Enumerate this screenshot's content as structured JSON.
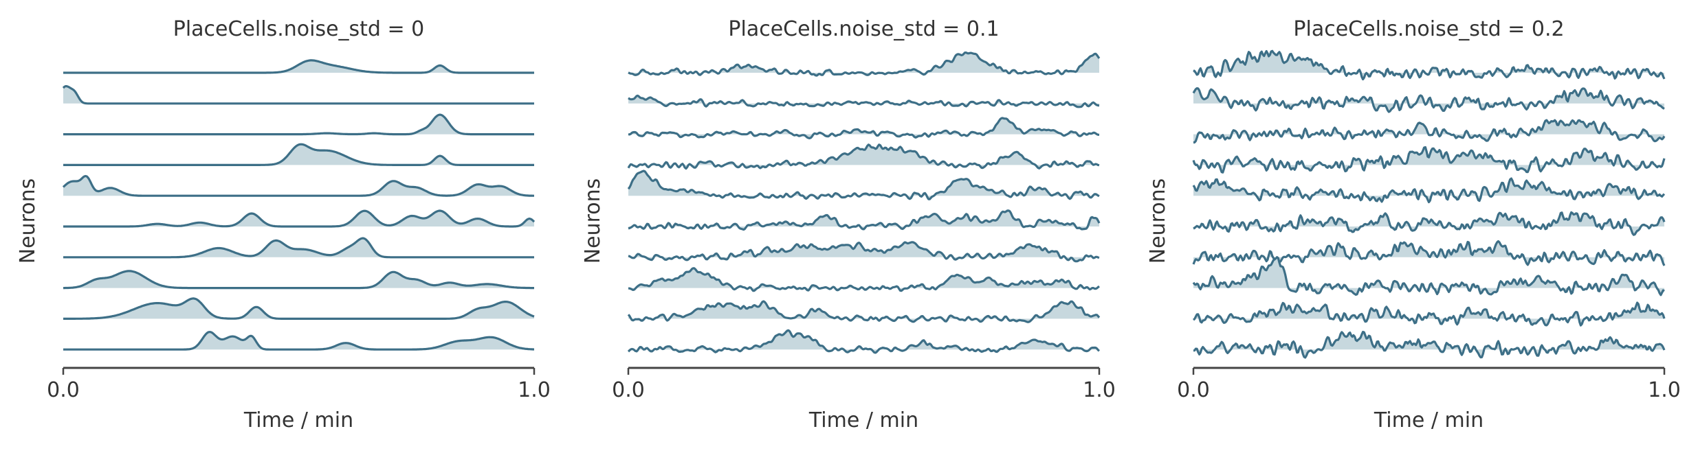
{
  "chart_data": [
    {
      "type": "line",
      "title": "PlaceCells.noise_std = 0",
      "xlabel": "Time / min",
      "ylabel": "Neurons",
      "xlim": [
        0,
        1
      ],
      "x_ticks": [
        "0.0",
        "1.0"
      ],
      "noise_std": 0,
      "n_neurons": 10,
      "line_color": "#3d6f87",
      "fill_color": "#c7d8de",
      "bumps": [
        [
          [
            0.52,
            0.025,
            0.35
          ],
          [
            0.57,
            0.04,
            0.25
          ],
          [
            0.8,
            0.012,
            0.28
          ]
        ],
        [
          [
            0.005,
            0.012,
            0.65
          ],
          [
            0.025,
            0.008,
            0.3
          ]
        ],
        [
          [
            0.8,
            0.018,
            0.75
          ],
          [
            0.76,
            0.01,
            0.1
          ],
          [
            0.56,
            0.02,
            0.04
          ],
          [
            0.66,
            0.015,
            0.04
          ]
        ],
        [
          [
            0.5,
            0.02,
            0.6
          ],
          [
            0.56,
            0.04,
            0.55
          ],
          [
            0.8,
            0.012,
            0.35
          ]
        ],
        [
          [
            0.02,
            0.02,
            0.55
          ],
          [
            0.05,
            0.01,
            0.55
          ],
          [
            0.1,
            0.02,
            0.3
          ],
          [
            0.7,
            0.02,
            0.55
          ],
          [
            0.75,
            0.02,
            0.3
          ],
          [
            0.88,
            0.02,
            0.42
          ],
          [
            0.93,
            0.02,
            0.35
          ]
        ],
        [
          [
            0.2,
            0.02,
            0.1
          ],
          [
            0.29,
            0.02,
            0.15
          ],
          [
            0.4,
            0.018,
            0.5
          ],
          [
            0.64,
            0.02,
            0.6
          ],
          [
            0.74,
            0.02,
            0.4
          ],
          [
            0.8,
            0.02,
            0.6
          ],
          [
            0.88,
            0.02,
            0.3
          ],
          [
            0.99,
            0.01,
            0.3
          ]
        ],
        [
          [
            0.33,
            0.03,
            0.35
          ],
          [
            0.45,
            0.02,
            0.6
          ],
          [
            0.51,
            0.03,
            0.3
          ],
          [
            0.61,
            0.02,
            0.35
          ],
          [
            0.64,
            0.015,
            0.6
          ]
        ],
        [
          [
            0.14,
            0.035,
            0.65
          ],
          [
            0.07,
            0.02,
            0.25
          ],
          [
            0.7,
            0.02,
            0.6
          ],
          [
            0.75,
            0.02,
            0.3
          ],
          [
            0.82,
            0.02,
            0.2
          ],
          [
            0.9,
            0.03,
            0.15
          ]
        ],
        [
          [
            0.2,
            0.05,
            0.6
          ],
          [
            0.28,
            0.02,
            0.6
          ],
          [
            0.41,
            0.015,
            0.45
          ],
          [
            0.94,
            0.03,
            0.65
          ],
          [
            0.88,
            0.02,
            0.3
          ]
        ],
        [
          [
            0.31,
            0.015,
            0.65
          ],
          [
            0.36,
            0.02,
            0.5
          ],
          [
            0.4,
            0.01,
            0.45
          ],
          [
            0.6,
            0.02,
            0.25
          ],
          [
            0.84,
            0.03,
            0.3
          ],
          [
            0.91,
            0.03,
            0.45
          ]
        ]
      ]
    },
    {
      "type": "line",
      "title": "PlaceCells.noise_std = 0.1",
      "xlabel": "Time / min",
      "ylabel": "Neurons",
      "xlim": [
        0,
        1
      ],
      "x_ticks": [
        "0.0",
        "1.0"
      ],
      "noise_std": 0.1,
      "n_neurons": 10,
      "line_color": "#3d6f87",
      "fill_color": "#c7d8de",
      "bumps": [
        [
          [
            0.25,
            0.04,
            0.2
          ],
          [
            0.72,
            0.04,
            0.75
          ],
          [
            0.99,
            0.02,
            0.7
          ]
        ],
        [
          [
            0.02,
            0.03,
            0.2
          ]
        ],
        [
          [
            0.8,
            0.02,
            0.6
          ],
          [
            0.88,
            0.02,
            0.25
          ],
          [
            0.5,
            0.03,
            0.15
          ]
        ],
        [
          [
            0.5,
            0.05,
            0.6
          ],
          [
            0.59,
            0.04,
            0.45
          ],
          [
            0.82,
            0.02,
            0.45
          ]
        ],
        [
          [
            0.02,
            0.02,
            0.6
          ],
          [
            0.05,
            0.02,
            0.5
          ],
          [
            0.12,
            0.03,
            0.25
          ],
          [
            0.7,
            0.02,
            0.5
          ],
          [
            0.74,
            0.03,
            0.3
          ],
          [
            0.87,
            0.02,
            0.35
          ]
        ],
        [
          [
            0.3,
            0.03,
            0.15
          ],
          [
            0.42,
            0.02,
            0.45
          ],
          [
            0.64,
            0.02,
            0.5
          ],
          [
            0.72,
            0.03,
            0.35
          ],
          [
            0.8,
            0.02,
            0.55
          ],
          [
            0.9,
            0.02,
            0.25
          ],
          [
            0.99,
            0.01,
            0.3
          ]
        ],
        [
          [
            0.3,
            0.04,
            0.25
          ],
          [
            0.38,
            0.03,
            0.35
          ],
          [
            0.47,
            0.04,
            0.45
          ],
          [
            0.6,
            0.03,
            0.55
          ],
          [
            0.85,
            0.03,
            0.5
          ]
        ],
        [
          [
            0.14,
            0.04,
            0.6
          ],
          [
            0.06,
            0.02,
            0.2
          ],
          [
            0.7,
            0.02,
            0.5
          ],
          [
            0.76,
            0.02,
            0.3
          ],
          [
            0.85,
            0.03,
            0.2
          ],
          [
            0.92,
            0.03,
            0.2
          ]
        ],
        [
          [
            0.2,
            0.05,
            0.55
          ],
          [
            0.29,
            0.02,
            0.5
          ],
          [
            0.4,
            0.02,
            0.35
          ],
          [
            0.93,
            0.03,
            0.6
          ]
        ],
        [
          [
            0.33,
            0.03,
            0.55
          ],
          [
            0.38,
            0.02,
            0.4
          ],
          [
            0.62,
            0.02,
            0.3
          ],
          [
            0.87,
            0.03,
            0.35
          ]
        ]
      ]
    },
    {
      "type": "line",
      "title": "PlaceCells.noise_std = 0.2",
      "xlabel": "Time / min",
      "ylabel": "Neurons",
      "xlim": [
        0,
        1
      ],
      "x_ticks": [
        "0.0",
        "1.0"
      ],
      "noise_std": 0.2,
      "n_neurons": 10,
      "line_color": "#3d6f87",
      "fill_color": "#c7d8de",
      "bumps": [
        [
          [
            0.15,
            0.05,
            0.65
          ],
          [
            0.24,
            0.03,
            0.3
          ],
          [
            0.7,
            0.04,
            0.15
          ]
        ],
        [
          [
            0.02,
            0.02,
            0.4
          ],
          [
            0.82,
            0.04,
            0.35
          ]
        ],
        [
          [
            0.78,
            0.03,
            0.55
          ],
          [
            0.85,
            0.02,
            0.25
          ],
          [
            0.48,
            0.03,
            0.2
          ]
        ],
        [
          [
            0.5,
            0.05,
            0.5
          ],
          [
            0.6,
            0.03,
            0.35
          ],
          [
            0.84,
            0.03,
            0.45
          ]
        ],
        [
          [
            0.03,
            0.02,
            0.5
          ],
          [
            0.07,
            0.02,
            0.35
          ],
          [
            0.68,
            0.03,
            0.4
          ],
          [
            0.75,
            0.03,
            0.3
          ],
          [
            0.9,
            0.03,
            0.3
          ]
        ],
        [
          [
            0.25,
            0.04,
            0.2
          ],
          [
            0.4,
            0.02,
            0.35
          ],
          [
            0.66,
            0.03,
            0.45
          ],
          [
            0.8,
            0.03,
            0.45
          ],
          [
            0.99,
            0.01,
            0.3
          ]
        ],
        [
          [
            0.3,
            0.04,
            0.3
          ],
          [
            0.45,
            0.02,
            0.45
          ],
          [
            0.58,
            0.03,
            0.35
          ],
          [
            0.65,
            0.02,
            0.5
          ]
        ],
        [
          [
            0.15,
            0.03,
            0.55
          ],
          [
            0.18,
            0.015,
            0.55
          ],
          [
            0.05,
            0.03,
            0.2
          ],
          [
            0.72,
            0.03,
            0.35
          ],
          [
            0.92,
            0.03,
            0.25
          ]
        ],
        [
          [
            0.22,
            0.05,
            0.45
          ],
          [
            0.4,
            0.02,
            0.35
          ],
          [
            0.6,
            0.03,
            0.25
          ],
          [
            0.95,
            0.03,
            0.5
          ]
        ],
        [
          [
            0.32,
            0.03,
            0.5
          ],
          [
            0.37,
            0.02,
            0.35
          ],
          [
            0.48,
            0.03,
            0.2
          ],
          [
            0.88,
            0.03,
            0.35
          ]
        ]
      ]
    }
  ]
}
